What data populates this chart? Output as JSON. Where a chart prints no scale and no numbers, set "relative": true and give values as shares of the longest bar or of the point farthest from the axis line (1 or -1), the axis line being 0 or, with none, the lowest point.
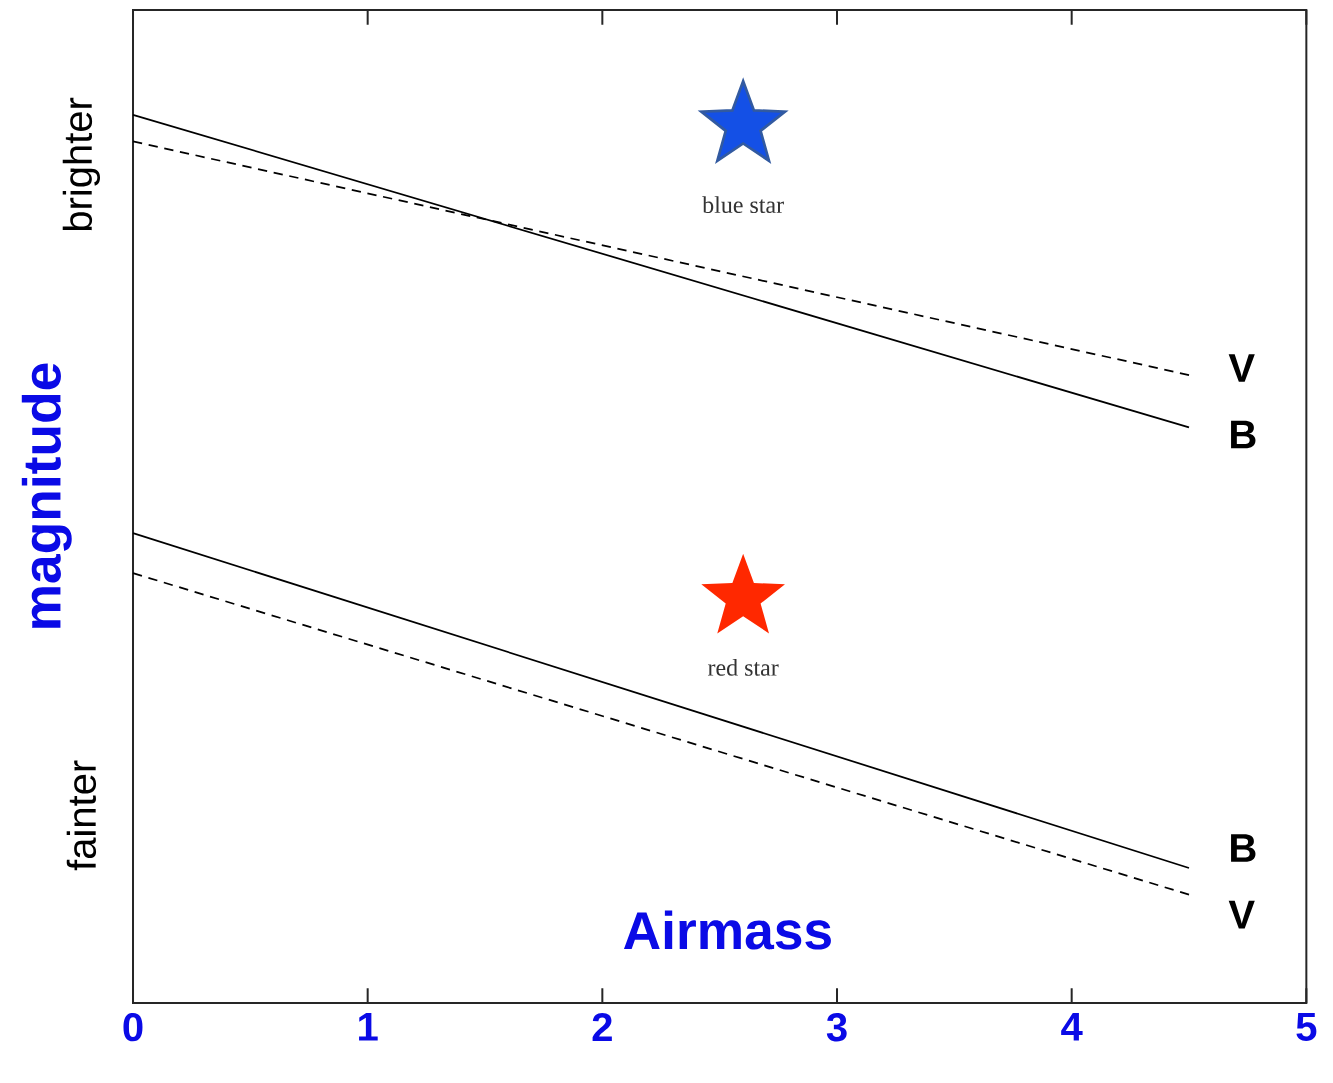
{
  "chart_data": {
    "type": "line",
    "xlabel": "Airmass",
    "ylabel": "magnitude",
    "relative": true,
    "tick_labels": "x",
    "x": [
      0,
      4.5
    ],
    "xlim": [
      0,
      5
    ],
    "xticks": [
      0,
      1,
      2,
      3,
      4,
      5
    ],
    "series": [
      {
        "name": "B",
        "color": "#000000",
        "line_style": "solid",
        "values": [
          1.0,
          0.648
        ]
      },
      {
        "name": "V",
        "color": "#000000",
        "line_style": "dashed",
        "values": [
          0.97,
          0.707
        ]
      },
      {
        "name": "B",
        "color": "#000000",
        "line_style": "solid",
        "values": [
          0.529,
          0.152
        ]
      },
      {
        "name": "V",
        "color": "#000000",
        "line_style": "dashed",
        "values": [
          0.484,
          0.122
        ]
      }
    ],
    "annotations": [
      "brighter",
      "fainter",
      "blue star",
      "red star"
    ]
  }
}
